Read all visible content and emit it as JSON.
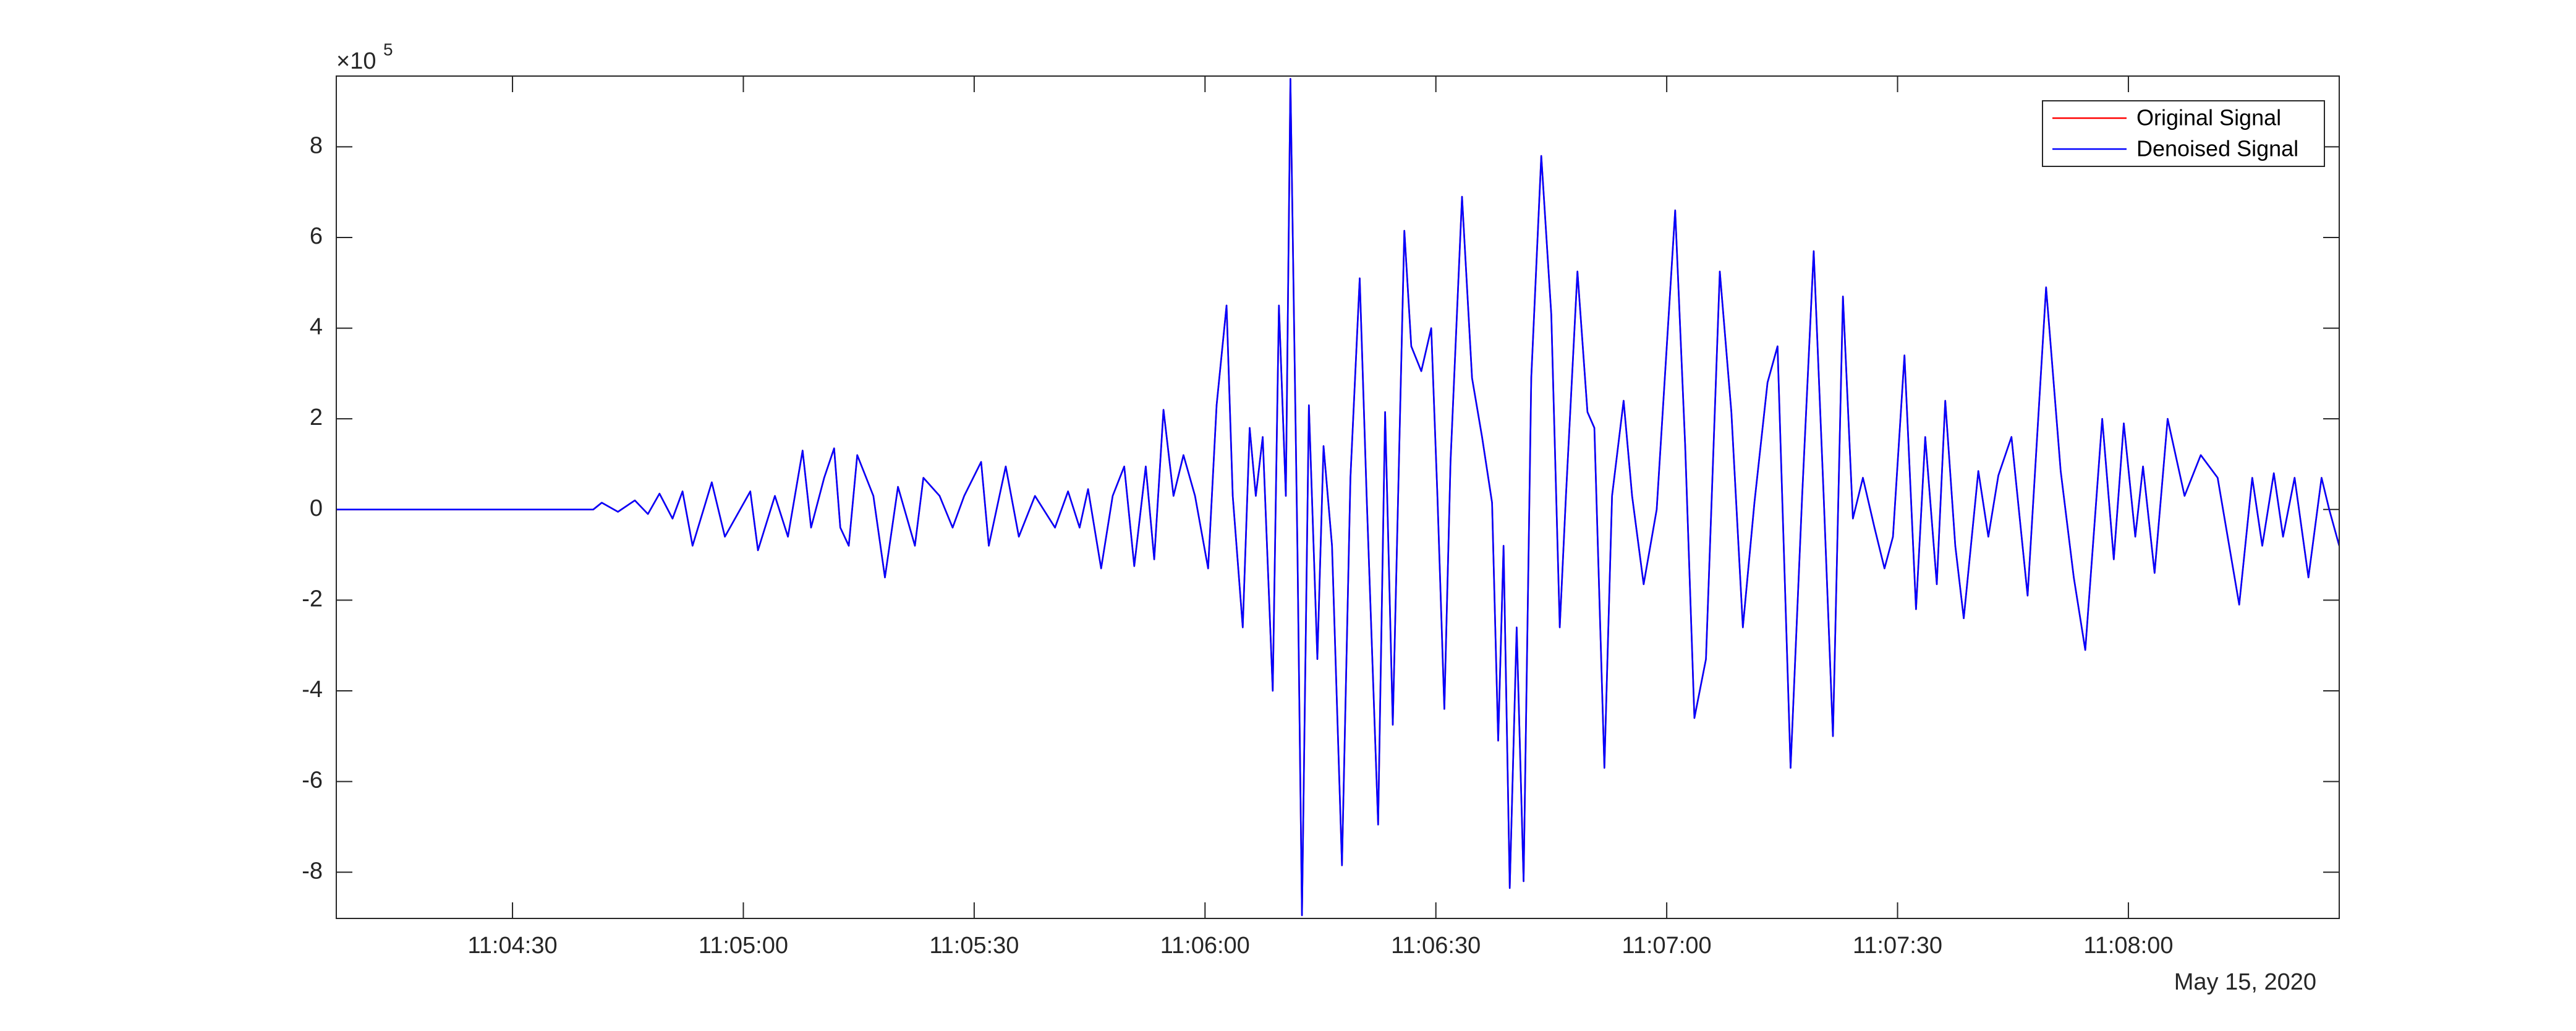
{
  "chart_data": {
    "type": "line",
    "x": [
      "11:04:07.1",
      "11:04:40.5",
      "11:04:41.6",
      "11:04:43.7",
      "11:04:45.9",
      "11:04:47.6",
      "11:04:49.1",
      "11:04:50.8",
      "11:04:52.1",
      "11:04:53.4",
      "11:04:55.9",
      "11:04:57.6",
      "11:05:00.9",
      "11:05:01.9",
      "11:05:04.1",
      "11:05:05.8",
      "11:05:07.7",
      "11:05:08.8",
      "11:05:10.5",
      "11:05:11.8",
      "11:05:12.6",
      "11:05:13.7",
      "11:05:14.8",
      "11:05:16.9",
      "11:05:18.4",
      "11:05:20.1",
      "11:05:22.3",
      "11:05:23.4",
      "11:05:25.5",
      "11:05:27.2",
      "11:05:28.7",
      "11:05:30.9",
      "11:05:31.9",
      "11:05:34.1",
      "11:05:35.8",
      "11:05:37.9",
      "11:05:40.5",
      "11:05:42.2",
      "11:05:43.7",
      "11:05:44.8",
      "11:05:46.5",
      "11:05:48.0",
      "11:05:49.5",
      "11:05:50.8",
      "11:05:52.3",
      "11:05:53.4",
      "11:05:54.6",
      "11:05:55.9",
      "11:05:57.2",
      "11:05:58.7",
      "11:06:00.4",
      "11:06:01.5",
      "11:06:02.8",
      "11:06:03.6",
      "11:06:04.9",
      "11:06:05.8",
      "11:06:06.6",
      "11:06:07.5",
      "11:06:08.8",
      "11:06:09.6",
      "11:06:10.5",
      "11:06:11.1",
      "11:06:12.0",
      "11:06:12.6",
      "11:06:13.5",
      "11:06:14.6",
      "11:06:15.4",
      "11:06:16.5",
      "11:06:17.8",
      "11:06:18.9",
      "11:06:20.1",
      "11:06:21.0",
      "11:06:22.5",
      "11:06:23.4",
      "11:06:24.4",
      "11:06:25.9",
      "11:06:26.8",
      "11:06:28.1",
      "11:06:29.4",
      "11:06:30.2",
      "11:06:31.1",
      "11:06:31.9",
      "11:06:33.4",
      "11:06:34.7",
      "11:06:36.0",
      "11:06:37.3",
      "11:06:38.1",
      "11:06:38.8",
      "11:06:39.6",
      "11:06:40.5",
      "11:06:41.4",
      "11:06:42.4",
      "11:06:43.7",
      "11:06:45.0",
      "11:06:46.1",
      "11:06:46.9",
      "11:06:48.4",
      "11:06:49.7",
      "11:06:50.6",
      "11:06:51.9",
      "11:06:52.9",
      "11:06:54.4",
      "11:06:55.5",
      "11:06:57.0",
      "11:06:58.7",
      "11:07:01.1",
      "11:07:02.4",
      "11:07:03.6",
      "11:07:05.1",
      "11:07:06.9",
      "11:07:08.4",
      "11:07:09.9",
      "11:07:11.4",
      "11:07:13.1",
      "11:07:14.4",
      "11:07:16.1",
      "11:07:17.6",
      "11:07:19.1",
      "11:07:20.4",
      "11:07:21.6",
      "11:07:22.9",
      "11:07:24.2",
      "11:07:25.5",
      "11:07:27.0",
      "11:07:28.3",
      "11:07:29.4",
      "11:07:30.9",
      "11:07:32.4",
      "11:07:33.6",
      "11:07:35.1",
      "11:07:36.2",
      "11:07:37.5",
      "11:07:38.6",
      "11:07:40.5",
      "11:07:41.8",
      "11:07:43.1",
      "11:07:44.8",
      "11:07:46.9",
      "11:07:49.3",
      "11:07:51.2",
      "11:07:52.9",
      "11:07:54.4",
      "11:07:56.6",
      "11:07:58.1",
      "11:07:59.4",
      "11:08:00.9",
      "11:08:01.9",
      "11:08:03.4",
      "11:08:05.1",
      "11:08:07.3",
      "11:08:09.4",
      "11:08:11.6",
      "11:08:14.4",
      "11:08:16.1",
      "11:08:17.4",
      "11:08:18.9",
      "11:08:20.1",
      "11:08:21.6",
      "11:08:23.4",
      "11:08:25.1",
      "11:08:26.1",
      "11:08:27.4"
    ],
    "series": [
      {
        "name": "Original Signal",
        "color": "#ff0000",
        "values": [
          0,
          0,
          0.15,
          -0.05,
          0.2,
          -0.1,
          0.35,
          -0.2,
          0.4,
          -0.8,
          0.6,
          -0.6,
          0.4,
          -0.9,
          0.3,
          -0.6,
          1.3,
          -0.4,
          0.7,
          1.35,
          -0.4,
          -0.8,
          1.2,
          0.3,
          -1.5,
          0.5,
          -0.8,
          0.7,
          0.3,
          -0.4,
          0.3,
          1.05,
          -0.8,
          0.95,
          -0.6,
          0.3,
          -0.4,
          0.4,
          -0.4,
          0.45,
          -1.3,
          0.3,
          0.95,
          -1.25,
          0.95,
          -1.1,
          2.2,
          0.3,
          1.2,
          0.3,
          -1.3,
          2.3,
          4.5,
          0.3,
          -2.6,
          1.8,
          0.3,
          1.6,
          -4.0,
          4.5,
          0.3,
          9.5,
          -0.8,
          -8.95,
          2.3,
          -3.3,
          1.4,
          -0.8,
          -7.85,
          0.7,
          5.1,
          0.3,
          -6.95,
          2.15,
          -4.75,
          6.15,
          3.6,
          3.05,
          4.0,
          0.3,
          -4.4,
          1.05,
          6.9,
          2.9,
          1.6,
          0.15,
          -5.1,
          -0.8,
          -8.35,
          -2.6,
          -8.2,
          2.9,
          7.8,
          4.3,
          -2.6,
          0.3,
          5.25,
          2.15,
          1.8,
          -5.7,
          0.3,
          2.4,
          0.3,
          -1.65,
          0,
          6.6,
          1.4,
          -4.6,
          -3.3,
          5.25,
          2.15,
          -2.6,
          0.15,
          2.8,
          3.6,
          -5.7,
          0.3,
          5.7,
          0.3,
          -5.0,
          4.7,
          -0.2,
          0.7,
          -0.4,
          -1.3,
          -0.6,
          3.4,
          -2.2,
          1.6,
          -1.65,
          2.4,
          -0.8,
          -2.4,
          0.85,
          -0.6,
          0.75,
          1.6,
          -1.9,
          4.9,
          0.85,
          -1.5,
          -3.1,
          2.0,
          -1.1,
          1.9,
          -0.6,
          0.95,
          -1.4,
          2.0,
          0.3,
          1.2,
          0.7,
          -2.1,
          0.7,
          -0.8,
          0.8,
          -0.6,
          0.7,
          -1.5,
          0.7,
          0,
          -0.8
        ]
      },
      {
        "name": "Denoised Signal",
        "color": "#0000ff",
        "values": [
          0,
          0,
          0.15,
          -0.05,
          0.2,
          -0.1,
          0.35,
          -0.2,
          0.4,
          -0.8,
          0.6,
          -0.6,
          0.4,
          -0.9,
          0.3,
          -0.6,
          1.3,
          -0.4,
          0.7,
          1.35,
          -0.4,
          -0.8,
          1.2,
          0.3,
          -1.5,
          0.5,
          -0.8,
          0.7,
          0.3,
          -0.4,
          0.3,
          1.05,
          -0.8,
          0.95,
          -0.6,
          0.3,
          -0.4,
          0.4,
          -0.4,
          0.45,
          -1.3,
          0.3,
          0.95,
          -1.25,
          0.95,
          -1.1,
          2.2,
          0.3,
          1.2,
          0.3,
          -1.3,
          2.3,
          4.5,
          0.3,
          -2.6,
          1.8,
          0.3,
          1.6,
          -4.0,
          4.5,
          0.3,
          9.5,
          -0.8,
          -8.95,
          2.3,
          -3.3,
          1.4,
          -0.8,
          -7.85,
          0.7,
          5.1,
          0.3,
          -6.95,
          2.15,
          -4.75,
          6.15,
          3.6,
          3.05,
          4.0,
          0.3,
          -4.4,
          1.05,
          6.9,
          2.9,
          1.6,
          0.15,
          -5.1,
          -0.8,
          -8.35,
          -2.6,
          -8.2,
          2.9,
          7.8,
          4.3,
          -2.6,
          0.3,
          5.25,
          2.15,
          1.8,
          -5.7,
          0.3,
          2.4,
          0.3,
          -1.65,
          0,
          6.6,
          1.4,
          -4.6,
          -3.3,
          5.25,
          2.15,
          -2.6,
          0.15,
          2.8,
          3.6,
          -5.7,
          0.3,
          5.7,
          0.3,
          -5.0,
          4.7,
          -0.2,
          0.7,
          -0.4,
          -1.3,
          -0.6,
          3.4,
          -2.2,
          1.6,
          -1.65,
          2.4,
          -0.8,
          -2.4,
          0.85,
          -0.6,
          0.75,
          1.6,
          -1.9,
          4.9,
          0.85,
          -1.5,
          -3.1,
          2.0,
          -1.1,
          1.9,
          -0.6,
          0.95,
          -1.4,
          2.0,
          0.3,
          1.2,
          0.7,
          -2.1,
          0.7,
          -0.8,
          0.8,
          -0.6,
          0.7,
          -1.5,
          0.7,
          0,
          -0.8
        ]
      }
    ],
    "xlim": [
      "11:04:07.1",
      "11:08:27.4"
    ],
    "xticks": [
      "11:04:30",
      "11:05:00",
      "11:05:30",
      "11:06:00",
      "11:06:30",
      "11:07:00",
      "11:07:30",
      "11:08:00"
    ],
    "x_date_label": "May 15, 2020",
    "ylim": [
      -9.02,
      9.56
    ],
    "yticks": [
      -8,
      -6,
      -4,
      -2,
      0,
      2,
      4,
      6,
      8
    ],
    "y_multiplier": {
      "base": "×10",
      "exponent": "5"
    },
    "legend": "northeast",
    "box": true
  }
}
